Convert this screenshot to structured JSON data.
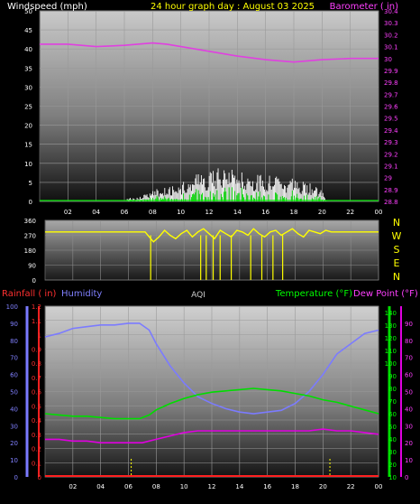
{
  "chart_data": [
    {
      "type": "line",
      "title": "24 hour graph day : August 03 2025",
      "left_axis_label": "Windspeed (mph)",
      "right_axis_label": "Barometer ( in)",
      "x_ticks": [
        "02",
        "04",
        "06",
        "08",
        "10",
        "12",
        "14",
        "16",
        "18",
        "20",
        "22",
        "00"
      ],
      "left_ticks": [
        "0",
        "5",
        "10",
        "15",
        "20",
        "25",
        "30",
        "35",
        "40",
        "45",
        "50"
      ],
      "left_range": [
        0,
        50
      ],
      "right_ticks": [
        "28.8",
        "28.9",
        "29",
        "29.1",
        "29.2",
        "29.3",
        "29.4",
        "29.5",
        "29.6",
        "29.7",
        "29.8",
        "29.9",
        "30",
        "30.1",
        "30.2",
        "30.3",
        "30.4"
      ],
      "right_range": [
        28.8,
        30.4
      ],
      "grid": true,
      "colors": {
        "wind": "#ffffff",
        "gust": "#cfcfcf",
        "avg_wind": "#00e000",
        "barometer": "#e040e0"
      },
      "barometer": {
        "x": [
          0,
          2,
          4,
          6,
          8,
          9,
          10,
          12,
          14,
          16,
          18,
          20,
          22,
          24
        ],
        "y": [
          30.12,
          30.12,
          30.1,
          30.11,
          30.13,
          30.12,
          30.1,
          30.06,
          30.02,
          29.99,
          29.97,
          29.99,
          30.0,
          30.0
        ]
      },
      "wind_gust_envelope": {
        "x": [
          6.2,
          7,
          8,
          9,
          10,
          11,
          12,
          13,
          14,
          15,
          16,
          17,
          18,
          19,
          20,
          20.4
        ],
        "y": [
          1,
          1,
          3,
          4,
          5,
          7,
          8,
          10,
          8,
          8,
          7,
          7,
          6,
          5,
          3,
          0
        ]
      }
    },
    {
      "type": "scatter",
      "title": "Wind direction",
      "direction_labels": [
        "N",
        "W",
        "S",
        "E",
        "N"
      ],
      "left_ticks": [
        "0",
        "90",
        "180",
        "270",
        "360"
      ],
      "left_range": [
        0,
        360
      ],
      "color": "#ffff00",
      "x": [
        0,
        7.2,
        7.4,
        7.8,
        8.2,
        8.6,
        9.0,
        9.4,
        9.8,
        10.2,
        10.6,
        11.0,
        11.4,
        11.8,
        12.2,
        12.6,
        13.0,
        13.4,
        13.8,
        14.2,
        14.6,
        15.0,
        15.4,
        15.8,
        16.2,
        16.6,
        17.0,
        17.4,
        17.8,
        18.2,
        18.6,
        19.0,
        19.4,
        19.8,
        20.2,
        20.6,
        24
      ],
      "y": [
        290,
        290,
        270,
        230,
        260,
        300,
        270,
        250,
        280,
        300,
        260,
        290,
        310,
        280,
        250,
        300,
        280,
        260,
        300,
        290,
        270,
        310,
        280,
        260,
        290,
        300,
        270,
        290,
        310,
        280,
        260,
        300,
        290,
        280,
        300,
        290,
        290
      ]
    },
    {
      "type": "line",
      "label_rainfall": "Rainfall ( in)",
      "label_humidity": "Humidity",
      "label_aqi": "AQI",
      "label_temperature": "Temperature (°F)",
      "label_dewpoint": "Dew Point (°F)",
      "rain_ticks": [
        "0",
        "0.1",
        "0.2",
        "0.3",
        "0.4",
        "0.5",
        "0.6",
        "0.7",
        "0.8",
        "0.9",
        "1",
        "1.1",
        "1.2"
      ],
      "rain_range": [
        0,
        1.2
      ],
      "humidity_ticks": [
        "0",
        "10",
        "20",
        "30",
        "40",
        "50",
        "60",
        "70",
        "80",
        "90",
        "100"
      ],
      "humidity_range": [
        0,
        100
      ],
      "temp_ticks": [
        "10",
        "20",
        "30",
        "40",
        "50",
        "60",
        "70",
        "80",
        "90",
        "100",
        "110",
        "120",
        "130",
        "140"
      ],
      "temp_range": [
        10,
        145
      ],
      "dew_ticks": [
        "0",
        "10",
        "20",
        "30",
        "40",
        "50",
        "60",
        "70",
        "80",
        "90"
      ],
      "x_ticks": [
        "02",
        "04",
        "06",
        "08",
        "10",
        "12",
        "14",
        "16",
        "18",
        "20",
        "22",
        "00"
      ],
      "grid": true,
      "colors": {
        "humidity": "#7b7bff",
        "temperature": "#00dd00",
        "dewpoint": "#e000e0",
        "rainfall": "#ff2020",
        "rain_axis": "#ff2020",
        "humidity_axis": "#7b7bff",
        "temp_axis": "#00dd00",
        "dew_axis": "#e000e0"
      },
      "humidity": {
        "x": [
          0,
          1,
          2,
          3,
          4,
          5,
          6,
          6.8,
          7.5,
          8,
          9,
          10,
          11,
          12,
          13,
          14,
          15,
          16,
          17,
          18,
          19,
          20,
          21,
          22,
          23,
          24
        ],
        "y": [
          82,
          84,
          87,
          88,
          89,
          89,
          90,
          90,
          86,
          78,
          65,
          55,
          47,
          43,
          40,
          38,
          37,
          38,
          39,
          43,
          50,
          60,
          72,
          78,
          84,
          86
        ]
      },
      "temperature": {
        "x": [
          0,
          1,
          2,
          3,
          4,
          5,
          6,
          6.8,
          7.5,
          8,
          9,
          10,
          11,
          12,
          13,
          14,
          15,
          16,
          17,
          18,
          19,
          20,
          21,
          22,
          23,
          24
        ],
        "y": [
          60,
          59,
          58,
          58,
          57,
          56,
          56,
          56,
          59,
          63,
          68,
          72,
          75,
          77,
          78,
          79,
          80,
          79,
          78,
          76,
          74,
          71,
          69,
          66,
          63,
          60
        ]
      },
      "dewpoint": {
        "x": [
          0,
          1,
          2,
          3,
          4,
          5,
          6,
          7,
          8,
          9,
          10,
          11,
          12,
          13,
          14,
          15,
          16,
          17,
          18,
          19,
          20,
          21,
          22,
          23,
          24
        ],
        "y": [
          22,
          22,
          21,
          21,
          20,
          20,
          20,
          20,
          22,
          24,
          26,
          27,
          27,
          27,
          27,
          27,
          27,
          27,
          27,
          27,
          28,
          27,
          27,
          26,
          25
        ]
      },
      "daylight_markers": [
        6.2,
        20.5
      ]
    }
  ]
}
